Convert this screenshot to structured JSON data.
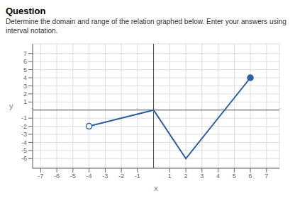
{
  "chart_data": {
    "type": "line",
    "title": "Question",
    "subtitle": "Determine the domain and range of the relation graphed below. Enter your answers using interval notation.",
    "x": [
      -4,
      0,
      2,
      6
    ],
    "values": [
      -2,
      0,
      -6,
      4
    ],
    "color": "#2e5fa3",
    "open_circle": [
      -4,
      -2
    ],
    "closed_circle": [
      6,
      4
    ],
    "xlim": [
      -7.5,
      7.8
    ],
    "ylim": [
      -7.2,
      8.2
    ],
    "xticks": [
      -7,
      -6,
      -5,
      -4,
      -3,
      -2,
      -1,
      1,
      2,
      3,
      4,
      5,
      6,
      7
    ],
    "yticks": [
      -6,
      -5,
      -4,
      -3,
      -2,
      -1,
      1,
      2,
      3,
      4,
      5,
      6,
      7
    ],
    "xlabel": "x",
    "ylabel": "y",
    "grid": true
  }
}
